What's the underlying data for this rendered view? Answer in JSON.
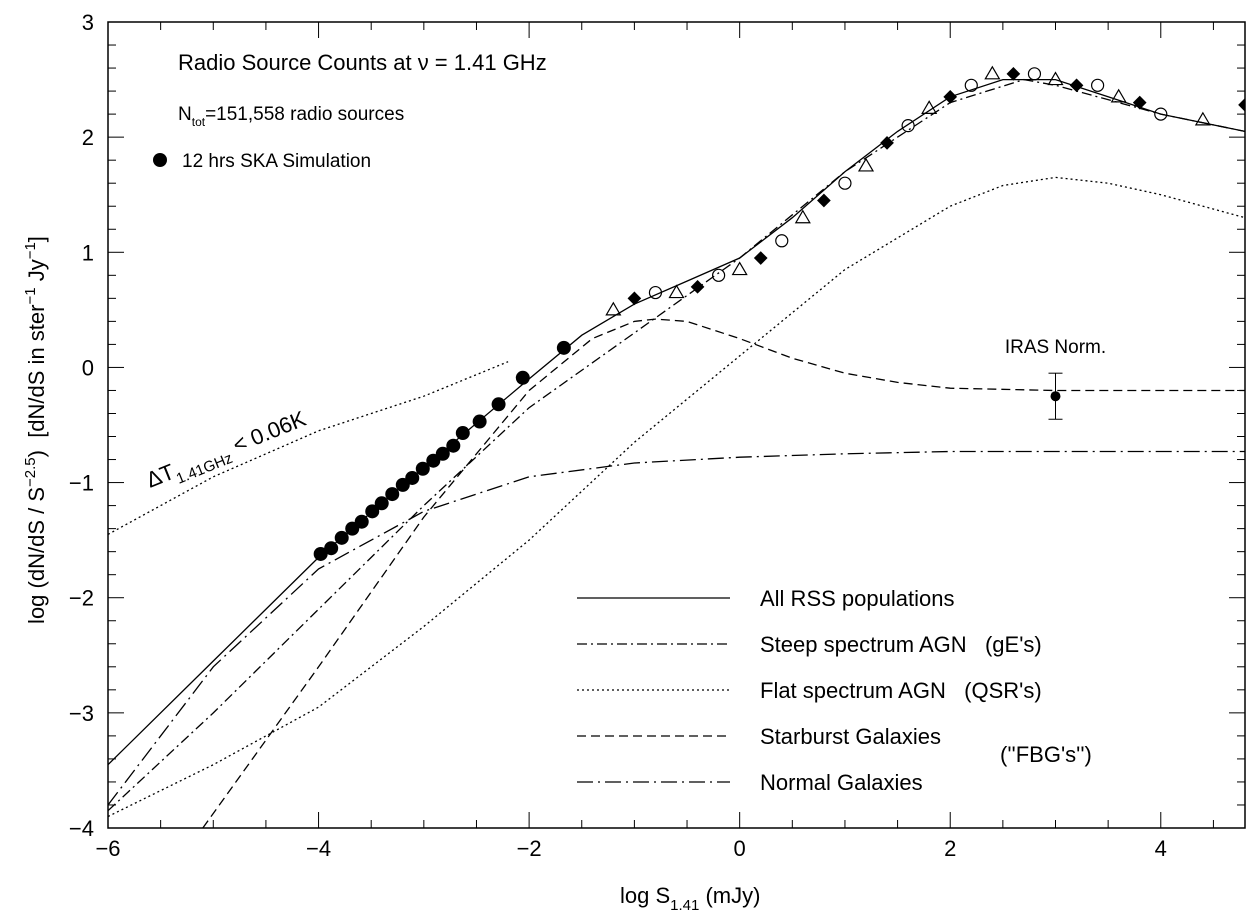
{
  "chart_data": {
    "type": "line",
    "title": "Radio Source Counts at ν = 1.41 GHz",
    "subtitle_parts": [
      "N",
      "tot",
      "=151,558 radio sources"
    ],
    "xlabel_parts": [
      "log S",
      "1.41",
      " (mJy)"
    ],
    "ylabel_parts": [
      "log (dN/dS / S",
      "−2.5",
      ")  [dN/dS in ster",
      "−1",
      " Jy",
      "−1",
      "]"
    ],
    "xlim": [
      -6,
      4.8
    ],
    "ylim": [
      -4,
      3
    ],
    "xticks": [
      {
        "value": -6,
        "label": "−6"
      },
      {
        "value": -4,
        "label": "−4"
      },
      {
        "value": -2,
        "label": "−2"
      },
      0,
      2,
      4
    ],
    "yticks": [
      {
        "value": -4,
        "label": "−4"
      },
      {
        "value": -3,
        "label": "−3"
      },
      {
        "value": -2,
        "label": "−2"
      },
      {
        "value": -1,
        "label": "−1"
      },
      0,
      1,
      2,
      3
    ],
    "xminorticks": [
      -5.5,
      -5,
      -4.5,
      -3.5,
      -3,
      -2.5,
      -1.5,
      -1,
      -0.5,
      0.5,
      1,
      1.5,
      2.5,
      3,
      3.5,
      4.5
    ],
    "yminorticks": [
      -3.8,
      -3.6,
      -3.4,
      -3.2,
      -2.8,
      -2.6,
      -2.4,
      -2.2,
      -1.8,
      -1.6,
      -1.4,
      -1.2,
      -0.8,
      -0.6,
      -0.4,
      -0.2,
      0.2,
      0.4,
      0.6,
      0.8,
      1.2,
      1.4,
      1.6,
      1.8,
      2.2,
      2.4,
      2.6,
      2.8
    ],
    "legend": "lower right",
    "series": [
      {
        "name": "All RSS populations",
        "color": "#000000",
        "dash": "solid",
        "x": [
          -6,
          -5,
          -4,
          -3,
          -2,
          -1.5,
          -1,
          -0.5,
          0,
          0.5,
          1,
          1.5,
          2,
          2.5,
          3,
          3.5,
          4,
          4.8
        ],
        "values": [
          -3.45,
          -2.55,
          -1.65,
          -0.87,
          -0.1,
          0.28,
          0.55,
          0.75,
          0.95,
          1.3,
          1.7,
          2.05,
          2.35,
          2.5,
          2.5,
          2.35,
          2.2,
          2.05
        ]
      },
      {
        "name": "Steep spectrum AGN   (gE's)",
        "color": "#000000",
        "dash": "dashdot",
        "x": [
          -6,
          -5,
          -4,
          -3,
          -2,
          -1,
          0,
          1,
          2,
          2.7,
          3,
          4,
          4.8
        ],
        "values": [
          -3.85,
          -3,
          -2.1,
          -1.2,
          -0.35,
          0.3,
          0.95,
          1.7,
          2.3,
          2.5,
          2.45,
          2.2,
          2.05
        ]
      },
      {
        "name": "Flat spectrum AGN   (QSR's)",
        "color": "#000000",
        "dash": "dotted",
        "x": [
          -6,
          -5,
          -4,
          -3,
          -2,
          -1,
          0,
          1,
          2,
          2.5,
          3,
          3.5,
          4,
          4.8
        ],
        "values": [
          -3.9,
          -3.45,
          -2.95,
          -2.25,
          -1.5,
          -0.65,
          0.1,
          0.85,
          1.4,
          1.58,
          1.65,
          1.6,
          1.5,
          1.3
        ]
      },
      {
        "name": "Starburst Galaxies",
        "color": "#000000",
        "dash": "dashed",
        "x": [
          -5.1,
          -4,
          -3,
          -2,
          -1.4,
          -1,
          -0.8,
          -0.5,
          0,
          0.5,
          1,
          1.5,
          2,
          3,
          4,
          4.8
        ],
        "values": [
          -4,
          -2.6,
          -1.3,
          -0.2,
          0.25,
          0.4,
          0.42,
          0.4,
          0.25,
          0.08,
          -0.05,
          -0.13,
          -0.18,
          -0.2,
          -0.2,
          -0.2
        ]
      },
      {
        "name": "Normal Galaxies",
        "color": "#000000",
        "dash": "longdashdot",
        "x": [
          -6,
          -5,
          -4,
          -3,
          -2,
          -1,
          0,
          1,
          2,
          3,
          4.8
        ],
        "values": [
          -3.8,
          -2.6,
          -1.75,
          -1.25,
          -0.95,
          -0.83,
          -0.78,
          -0.75,
          -0.73,
          -0.73,
          -0.73
        ]
      },
      {
        "name": "12 hrs SKA Simulation",
        "color": "#000000",
        "dash": "none",
        "marker": "filled-circle",
        "x": [
          -3.98,
          -3.88,
          -3.78,
          -3.68,
          -3.59,
          -3.49,
          -3.4,
          -3.3,
          -3.2,
          -3.11,
          -3.01,
          -2.91,
          -2.82,
          -2.72,
          -2.63,
          -2.47,
          -2.29,
          -2.06,
          -1.67
        ],
        "values": [
          -1.62,
          -1.57,
          -1.48,
          -1.4,
          -1.34,
          -1.25,
          -1.18,
          -1.1,
          -1.02,
          -0.96,
          -0.88,
          -0.81,
          -0.75,
          -0.68,
          -0.57,
          -0.47,
          -0.32,
          -0.09,
          0.17
        ]
      },
      {
        "dash": "none",
        "marker": "open-mixed",
        "color": "#000000",
        "x": [
          -1.2,
          -1,
          -0.8,
          -0.6,
          -0.4,
          -0.2,
          0,
          0.2,
          0.4,
          0.6,
          0.8,
          1,
          1.2,
          1.4,
          1.6,
          1.8,
          2,
          2.2,
          2.4,
          2.6,
          2.8,
          3,
          3.2,
          3.4,
          3.6,
          3.8,
          4,
          4.4,
          4.8
        ],
        "values": [
          0.5,
          0.6,
          0.65,
          0.65,
          0.7,
          0.8,
          0.85,
          0.95,
          1.1,
          1.3,
          1.45,
          1.6,
          1.75,
          1.95,
          2.1,
          2.25,
          2.35,
          2.45,
          2.55,
          2.55,
          2.55,
          2.5,
          2.45,
          2.45,
          2.35,
          2.3,
          2.2,
          2.15,
          2.28
        ]
      }
    ],
    "limit_line": {
      "label_parts": [
        "ΔT",
        "1.41GHz",
        " < 0.06K"
      ],
      "x": [
        -6,
        -5,
        -4,
        -3,
        -2.2
      ],
      "values": [
        -1.45,
        -0.95,
        -0.55,
        -0.25,
        0.05
      ]
    },
    "iras_point": {
      "label": "IRAS Norm.",
      "x": 3,
      "value": -0.25,
      "error": 0.2
    },
    "annotation": "(''FBG's'')"
  }
}
